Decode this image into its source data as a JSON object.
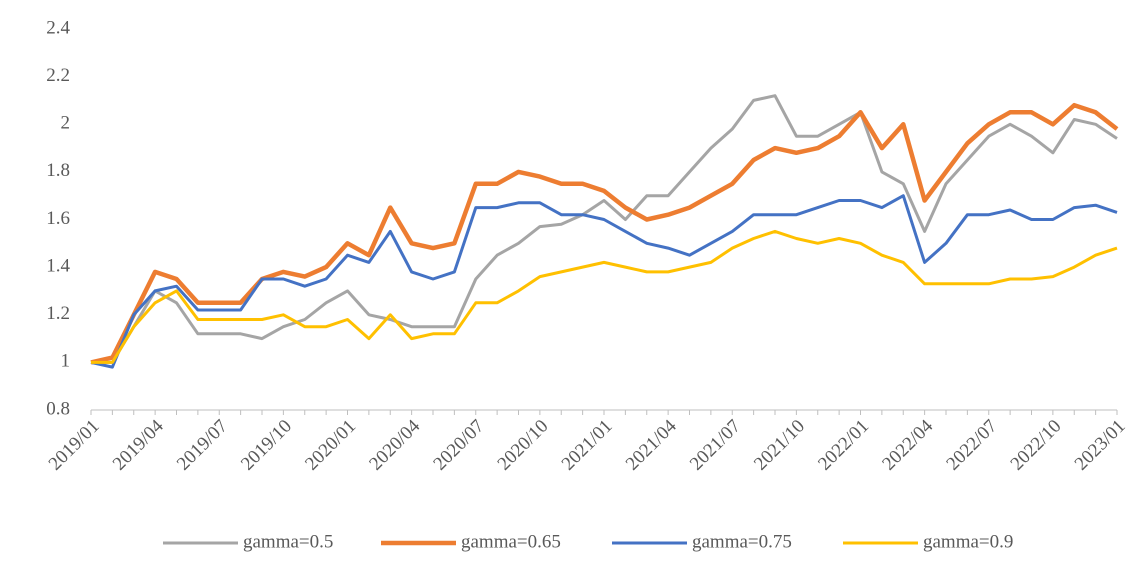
{
  "chart_data": {
    "type": "line",
    "categories": [
      "2019/01",
      null,
      null,
      "2019/04",
      null,
      null,
      "2019/07",
      null,
      null,
      "2019/10",
      null,
      null,
      "2020/01",
      null,
      null,
      "2020/04",
      null,
      null,
      "2020/07",
      null,
      null,
      "2020/10",
      null,
      null,
      "2021/01",
      null,
      null,
      "2021/04",
      null,
      null,
      "2021/07",
      null,
      null,
      "2021/10",
      null,
      null,
      "2022/01",
      null,
      null,
      "2022/04",
      null,
      null,
      "2022/07",
      null,
      null,
      "2022/10",
      null,
      null,
      "2023/01"
    ],
    "series": [
      {
        "name": "gamma=0.5",
        "color": "#a5a5a5",
        "values": [
          1.0,
          1.0,
          1.15,
          1.3,
          1.25,
          1.12,
          1.12,
          1.12,
          1.1,
          1.15,
          1.18,
          1.25,
          1.3,
          1.2,
          1.18,
          1.15,
          1.15,
          1.15,
          1.35,
          1.45,
          1.5,
          1.57,
          1.58,
          1.62,
          1.68,
          1.6,
          1.7,
          1.7,
          1.8,
          1.9,
          1.98,
          2.1,
          2.12,
          1.95,
          1.95,
          2.0,
          2.05,
          1.8,
          1.75,
          1.55,
          1.75,
          1.85,
          1.95,
          2.0,
          1.95,
          1.88,
          2.02,
          2.0,
          1.94
        ]
      },
      {
        "name": "gamma=0.65",
        "color": "#ed7d31",
        "values": [
          1.0,
          1.02,
          1.2,
          1.38,
          1.35,
          1.25,
          1.25,
          1.25,
          1.35,
          1.38,
          1.36,
          1.4,
          1.5,
          1.45,
          1.65,
          1.5,
          1.48,
          1.5,
          1.75,
          1.75,
          1.8,
          1.78,
          1.75,
          1.75,
          1.72,
          1.65,
          1.6,
          1.62,
          1.65,
          1.7,
          1.75,
          1.85,
          1.9,
          1.88,
          1.9,
          1.95,
          2.05,
          1.9,
          2.0,
          1.68,
          1.8,
          1.92,
          2.0,
          2.05,
          2.05,
          2.0,
          2.08,
          2.05,
          1.98
        ]
      },
      {
        "name": "gamma=0.75",
        "color": "#4472c4",
        "values": [
          1.0,
          0.98,
          1.2,
          1.3,
          1.32,
          1.22,
          1.22,
          1.22,
          1.35,
          1.35,
          1.32,
          1.35,
          1.45,
          1.42,
          1.55,
          1.38,
          1.35,
          1.38,
          1.65,
          1.65,
          1.67,
          1.67,
          1.62,
          1.62,
          1.6,
          1.55,
          1.5,
          1.48,
          1.45,
          1.5,
          1.55,
          1.62,
          1.62,
          1.62,
          1.65,
          1.68,
          1.68,
          1.65,
          1.7,
          1.42,
          1.5,
          1.62,
          1.62,
          1.64,
          1.6,
          1.6,
          1.65,
          1.66,
          1.63
        ]
      },
      {
        "name": "gamma=0.9",
        "color": "#ffc000",
        "values": [
          1.0,
          1.0,
          1.15,
          1.25,
          1.3,
          1.18,
          1.18,
          1.18,
          1.18,
          1.2,
          1.15,
          1.15,
          1.18,
          1.1,
          1.2,
          1.1,
          1.12,
          1.12,
          1.25,
          1.25,
          1.3,
          1.36,
          1.38,
          1.4,
          1.42,
          1.4,
          1.38,
          1.38,
          1.4,
          1.42,
          1.48,
          1.52,
          1.55,
          1.52,
          1.5,
          1.52,
          1.5,
          1.45,
          1.42,
          1.33,
          1.33,
          1.33,
          1.33,
          1.35,
          1.35,
          1.36,
          1.4,
          1.45,
          1.48
        ]
      }
    ],
    "ylim": [
      0.8,
      2.4
    ],
    "yticks": [
      {
        "value": 0.8,
        "label": "0.8"
      },
      1,
      {
        "value": 1.2,
        "label": "1.2"
      },
      {
        "value": 1.4,
        "label": "1.4"
      },
      {
        "value": 1.6,
        "label": "1.6"
      },
      {
        "value": 1.8,
        "label": "1.8"
      },
      2,
      {
        "value": 2.2,
        "label": "2.2"
      },
      {
        "value": 2.4,
        "label": "2.4"
      }
    ],
    "grid": false,
    "legend": "bottom"
  }
}
